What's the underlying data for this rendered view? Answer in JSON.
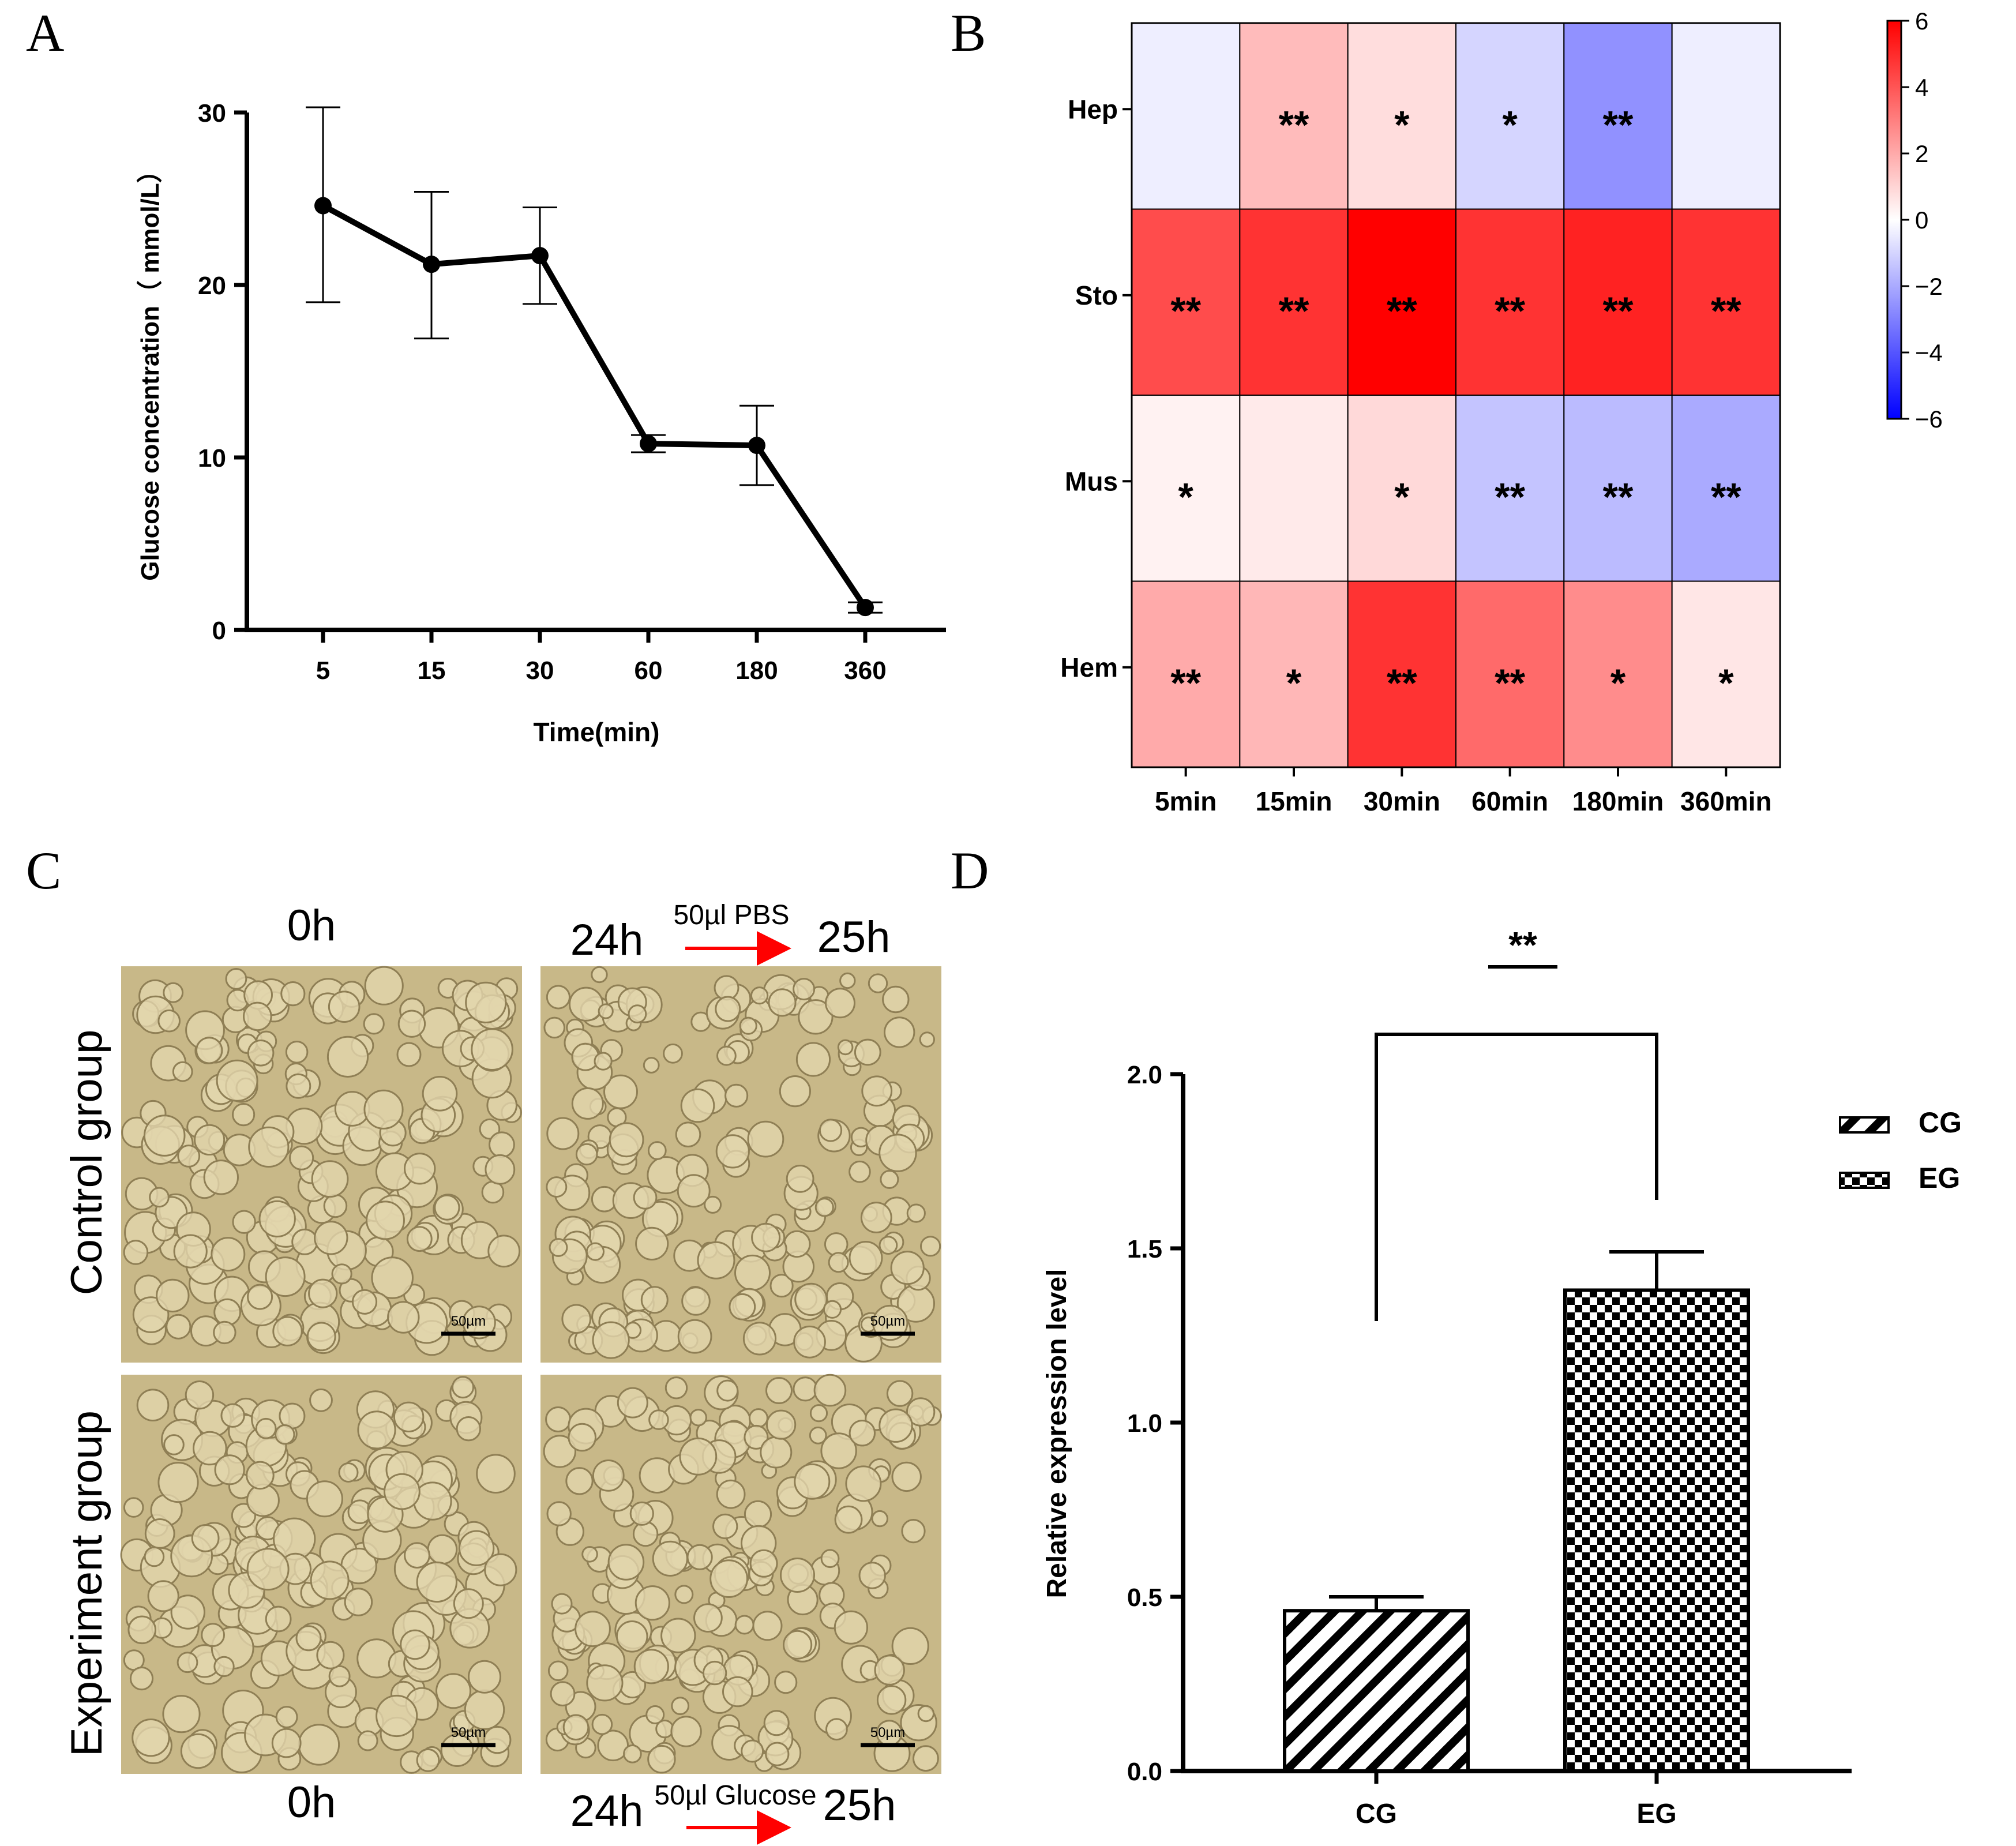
{
  "colors": {
    "ink": "#000000",
    "heat_neg": "#0000ff",
    "heat_zero": "#ffffff",
    "heat_pos": "#ff0000",
    "arrow": "#ff0000",
    "micro_base": "#c8b888",
    "micro_light": "#e2d6ac",
    "micro_dark": "#8f7f55"
  },
  "panels": {
    "A": {
      "letter": "A"
    },
    "B": {
      "letter": "B"
    },
    "C": {
      "letter": "C",
      "top_left_label": "0h",
      "top_right_start": "24h",
      "top_right_end": "25h",
      "top_arrow_label": "50µl PBS",
      "bottom_left_label": "0h",
      "bottom_right_start": "24h",
      "bottom_right_end": "25h",
      "bottom_arrow_label": "50µl Glucose",
      "row_control": "Control group",
      "row_experiment": "Experiment group",
      "scalebar": "50µm",
      "micrographs": [
        {
          "name": "micrograph-control-0h",
          "group": "control",
          "time": "0h"
        },
        {
          "name": "micrograph-control-25h",
          "group": "control",
          "time": "25h"
        },
        {
          "name": "micrograph-experiment-0h",
          "group": "experiment",
          "time": "0h"
        },
        {
          "name": "micrograph-experiment-25h",
          "group": "experiment",
          "time": "25h"
        }
      ]
    },
    "D": {
      "letter": "D"
    }
  },
  "chart_data": [
    {
      "id": "A",
      "type": "line",
      "title": "",
      "xlabel": "Time(min)",
      "ylabel": "Glucose concentration（ mmol/L）",
      "categories": [
        "5",
        "15",
        "30",
        "60",
        "180",
        "360"
      ],
      "values": [
        24.6,
        21.2,
        21.7,
        10.8,
        10.7,
        1.3
      ],
      "err_high": [
        30.3,
        25.4,
        24.5,
        11.3,
        13.0,
        1.6
      ],
      "err_low": [
        19.0,
        16.9,
        18.9,
        10.3,
        8.4,
        1.0
      ],
      "yticks": [
        0,
        10,
        20,
        30
      ],
      "ylim": [
        0,
        30
      ]
    },
    {
      "id": "B",
      "type": "heatmap",
      "rows": [
        "Hep",
        "Sto",
        "Mus",
        "Hem"
      ],
      "columns": [
        "5min",
        "15min",
        "30min",
        "60min",
        "180min",
        "360min"
      ],
      "values": [
        [
          -0.4,
          1.6,
          0.8,
          -1.0,
          -2.6,
          -0.4
        ],
        [
          4.2,
          4.8,
          6.0,
          4.8,
          5.2,
          4.8
        ],
        [
          0.3,
          0.5,
          0.9,
          -1.4,
          -1.6,
          -2.0
        ],
        [
          2.0,
          1.7,
          4.8,
          3.5,
          2.7,
          0.6
        ]
      ],
      "significance": [
        [
          "",
          "**",
          "*",
          "*",
          "**",
          ""
        ],
        [
          "**",
          "**",
          "**",
          "**",
          "**",
          "**"
        ],
        [
          "*",
          "",
          "*",
          "**",
          "**",
          "**"
        ],
        [
          "**",
          "*",
          "**",
          "**",
          "*",
          "*"
        ]
      ],
      "colorbar_ticks": [
        "6",
        "4",
        "2",
        "0",
        "−2",
        "−4",
        "−6"
      ],
      "vmin": -6,
      "vmax": 6
    },
    {
      "id": "D",
      "type": "bar",
      "title": "",
      "xlabel": "",
      "ylabel": "Relative expression level",
      "categories": [
        "CG",
        "EG"
      ],
      "values": [
        0.46,
        1.38
      ],
      "err_high": [
        0.5,
        1.49
      ],
      "yticks": [
        "0.0",
        "0.5",
        "1.0",
        "1.5",
        "2.0"
      ],
      "ylim": [
        0,
        2.0
      ],
      "legend": [
        "CG",
        "EG"
      ],
      "legend_position": "top-right",
      "significance_label": "**"
    }
  ]
}
